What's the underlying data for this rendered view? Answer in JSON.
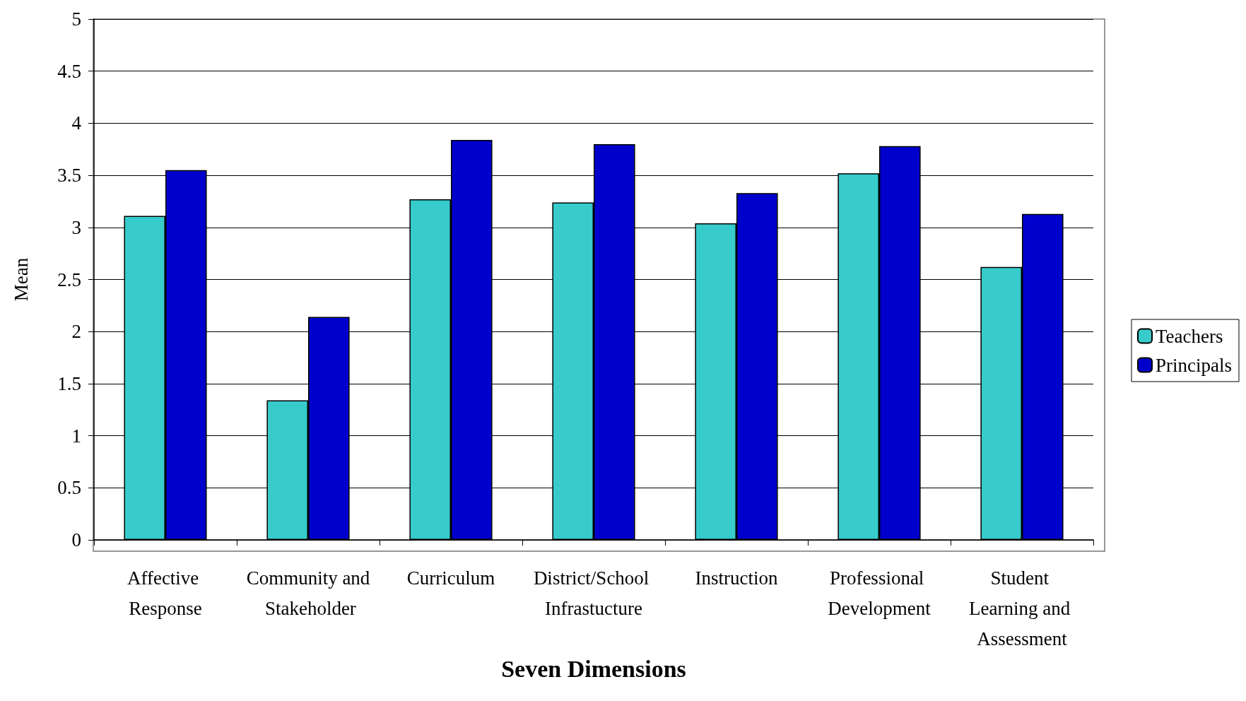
{
  "chart_data": {
    "type": "bar",
    "xlabel": "Seven Dimensions",
    "ylabel": "Mean",
    "categories": [
      "Affective Response",
      "Community and Stakeholder",
      "Curriculum",
      "District/School Infrastucture",
      "Instruction",
      "Professional Development",
      "Student Learning and Assessment"
    ],
    "series": [
      {
        "name": "Teachers",
        "color": "#37cbcb",
        "values": [
          3.11,
          1.34,
          3.27,
          3.24,
          3.04,
          3.52,
          2.62
        ]
      },
      {
        "name": "Principals",
        "color": "#0000cd",
        "values": [
          3.55,
          2.14,
          3.84,
          3.8,
          3.33,
          3.78,
          3.13
        ]
      }
    ],
    "ylim": [
      0,
      5
    ],
    "yticks": [
      0,
      0.5,
      1,
      1.5,
      2,
      2.5,
      3,
      3.5,
      4,
      4.5,
      5
    ],
    "grid": "y",
    "legend": "right"
  }
}
